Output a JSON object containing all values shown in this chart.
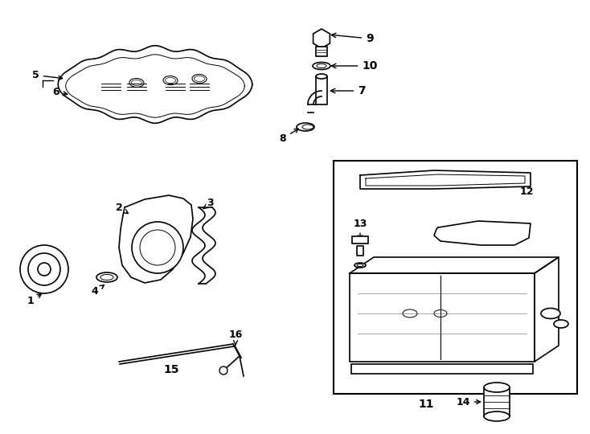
{
  "background_color": "#ffffff",
  "line_color": "#000000",
  "figsize": [
    7.34,
    5.4
  ],
  "dpi": 100
}
